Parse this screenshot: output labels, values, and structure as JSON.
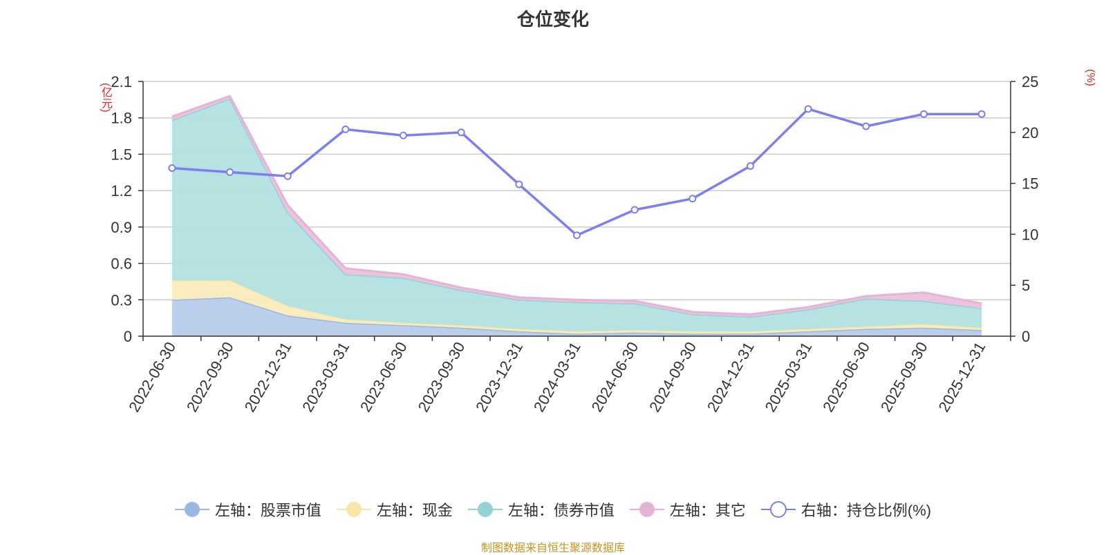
{
  "chart_data": {
    "type": "area",
    "title": "仓位变化",
    "left_axis_unit": "(亿元)",
    "right_axis_unit": "(%)",
    "categories": [
      "2022-06-30",
      "2022-09-30",
      "2022-12-31",
      "2023-03-31",
      "2023-06-30",
      "2023-09-30",
      "2023-12-31",
      "2024-03-31",
      "2024-06-30",
      "2024-09-30",
      "2024-12-31",
      "2025-03-31",
      "2025-06-30",
      "2025-09-30",
      "2025-12-31"
    ],
    "y_left": {
      "min": 0,
      "max": 2.1,
      "ticks": [
        "0",
        "0.3",
        "0.6",
        "0.9",
        "1.2",
        "1.5",
        "1.8",
        "2.1"
      ]
    },
    "y_right": {
      "min": 0,
      "max": 25,
      "ticks": [
        "0",
        "5",
        "10",
        "15",
        "20",
        "25"
      ]
    },
    "stacked_series": [
      {
        "name": "左轴：股票市值",
        "color": "#9bb8e2",
        "fill": "#b7cbeb",
        "values": [
          0.3,
          0.32,
          0.17,
          0.11,
          0.09,
          0.07,
          0.04,
          0.02,
          0.03,
          0.02,
          0.02,
          0.04,
          0.06,
          0.07,
          0.05
        ]
      },
      {
        "name": "左轴：现金",
        "color": "#f7e6a8",
        "fill": "#f9ecbc",
        "values": [
          0.16,
          0.14,
          0.08,
          0.03,
          0.02,
          0.02,
          0.02,
          0.02,
          0.02,
          0.02,
          0.02,
          0.02,
          0.02,
          0.03,
          0.02
        ]
      },
      {
        "name": "左轴：债券市值",
        "color": "#96d2d4",
        "fill": "#b2e0e0",
        "values": [
          1.32,
          1.5,
          0.77,
          0.37,
          0.37,
          0.29,
          0.24,
          0.24,
          0.22,
          0.14,
          0.12,
          0.16,
          0.23,
          0.19,
          0.16
        ]
      },
      {
        "name": "左轴：其它",
        "color": "#e6b3d7",
        "fill": "#ecc1de",
        "values": [
          0.03,
          0.02,
          0.06,
          0.05,
          0.03,
          0.02,
          0.02,
          0.02,
          0.02,
          0.02,
          0.02,
          0.02,
          0.02,
          0.07,
          0.04
        ]
      }
    ],
    "line_series": {
      "name": "右轴：持仓比例(%)",
      "color": "#7b7ff0",
      "values": [
        16.5,
        16.1,
        15.7,
        20.3,
        19.7,
        20.0,
        14.9,
        9.9,
        12.4,
        13.5,
        16.7,
        22.3,
        20.6,
        21.8,
        21.8
      ]
    }
  },
  "legend": [
    {
      "label": "左轴：股票市值",
      "color": "#9bb8e2",
      "fill": "#9bb8e2",
      "hollow": false
    },
    {
      "label": "左轴：现金",
      "color": "#f7e6a8",
      "fill": "#f7e6a8",
      "hollow": false
    },
    {
      "label": "左轴：债券市值",
      "color": "#96d2d4",
      "fill": "#96d2d4",
      "hollow": false
    },
    {
      "label": "左轴：其它",
      "color": "#e6b3d7",
      "fill": "#e6b3d7",
      "hollow": false
    },
    {
      "label": "右轴：持仓比例(%)",
      "color": "#7b7ff0",
      "fill": "#ffffff",
      "hollow": true
    }
  ],
  "source": "制图数据来自恒生聚源数据库"
}
